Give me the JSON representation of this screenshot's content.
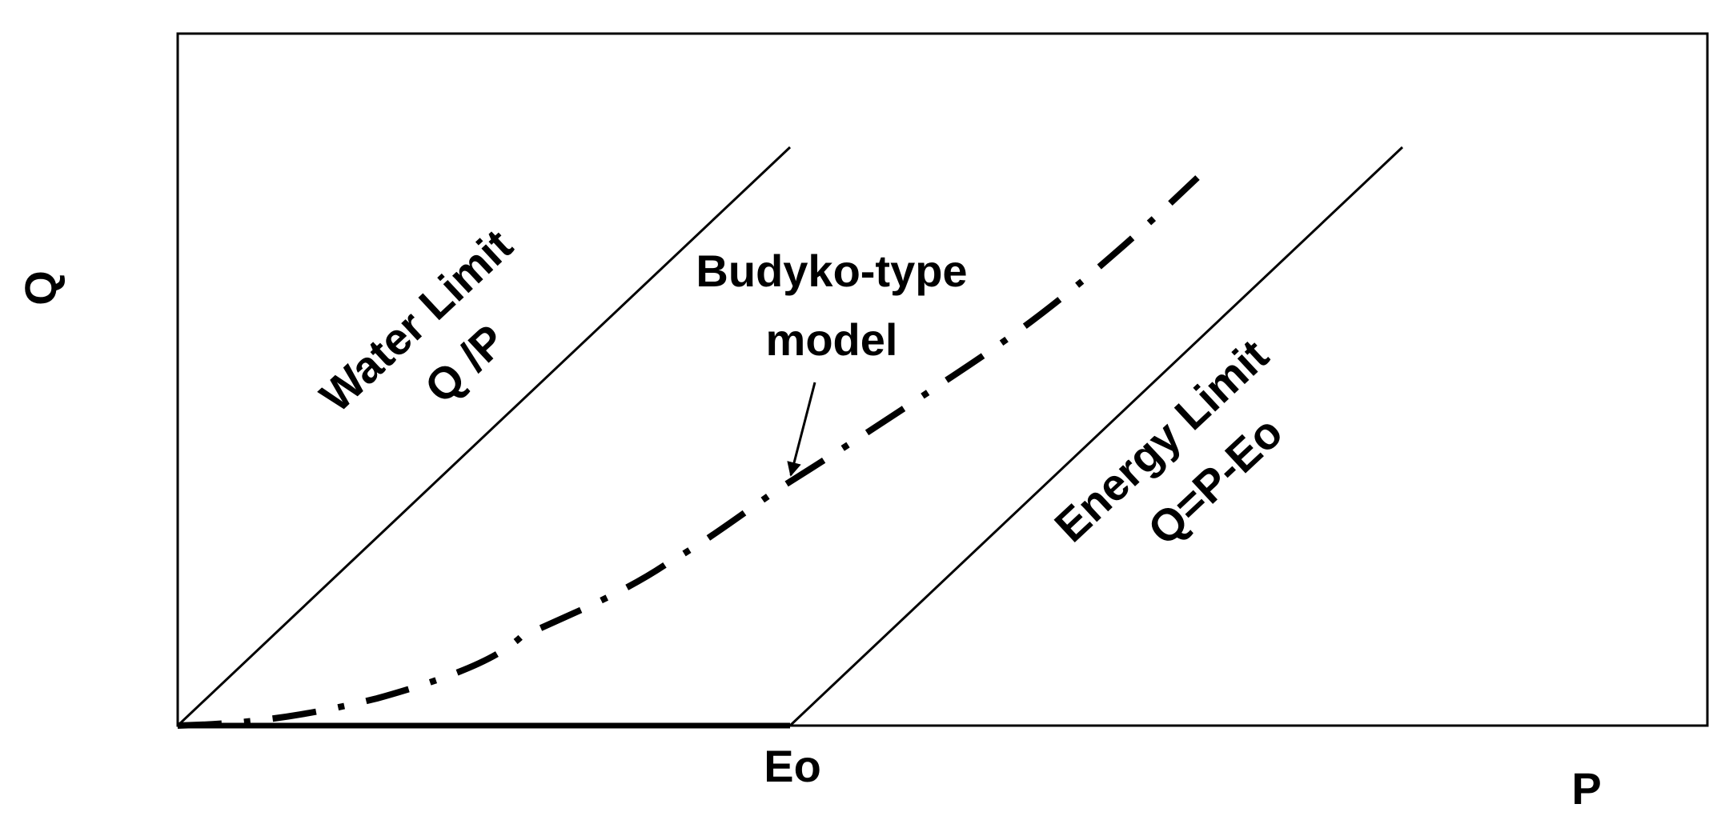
{
  "axes": {
    "y_label": "Q",
    "x_label": "P",
    "x_marker": "Eo"
  },
  "water_limit": {
    "lines": [
      "Water Limit",
      "Q /P"
    ]
  },
  "budyko_model": {
    "lines": [
      "Budyko-type",
      "model"
    ]
  },
  "energy_limit": {
    "lines": [
      "Energy Limit",
      "Q=P-Eo"
    ]
  }
}
